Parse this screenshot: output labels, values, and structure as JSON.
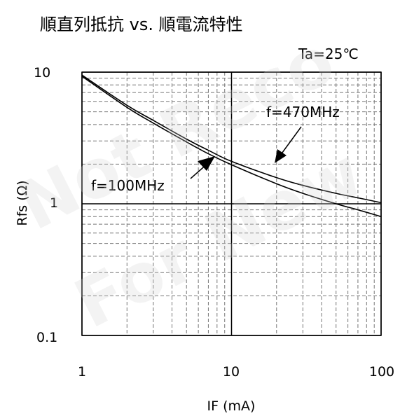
{
  "chart_data": {
    "type": "line",
    "title": "順直列抵抗 vs. 順電流特性",
    "condition": "Ta=25℃",
    "xlabel": "IF (mA)",
    "ylabel": "Rfs (Ω)",
    "xscale": "log",
    "yscale": "log",
    "xlim": [
      1,
      100
    ],
    "ylim": [
      0.1,
      10
    ],
    "x_ticks": [
      "1",
      "10",
      "100"
    ],
    "y_ticks": [
      "10",
      "1",
      "0.1"
    ],
    "grid": true,
    "watermark": "Not Recommended For New Design",
    "series": [
      {
        "name": "f=470MHz",
        "x": [
          1,
          2,
          3,
          5,
          7,
          10,
          20,
          30,
          50,
          70,
          100
        ],
        "y": [
          9.5,
          5.6,
          4.3,
          3.1,
          2.55,
          2.1,
          1.58,
          1.38,
          1.2,
          1.11,
          1.02
        ]
      },
      {
        "name": "f=100MHz",
        "x": [
          1,
          2,
          3,
          5,
          7,
          10,
          20,
          30,
          50,
          70,
          100
        ],
        "y": [
          9.3,
          5.4,
          4.1,
          2.95,
          2.4,
          1.98,
          1.42,
          1.2,
          1.0,
          0.9,
          0.8
        ]
      }
    ]
  }
}
